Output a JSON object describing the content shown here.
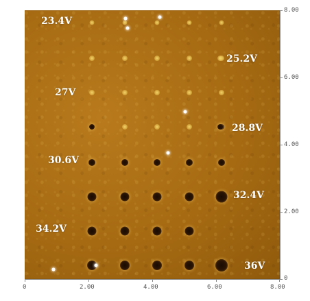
{
  "image": {
    "description_type": "afm-height-map",
    "colors": {
      "background": "#a66a12",
      "bright_spot": "#f2d36a",
      "dark_pit": "#1a0c02",
      "label": "#ffffff",
      "axis": "#888888"
    }
  },
  "voltage_labels": [
    "23.4V",
    "25.2V",
    "27V",
    "28.8V",
    "30.6V",
    "32.4V",
    "34.2V",
    "36V"
  ],
  "axes": {
    "x_ticks": [
      "0",
      "2.00",
      "4.00",
      "6.00",
      "8.00"
    ],
    "y_ticks": [
      "0",
      "2.00",
      "4.00",
      "6.00",
      "8.00"
    ]
  }
}
